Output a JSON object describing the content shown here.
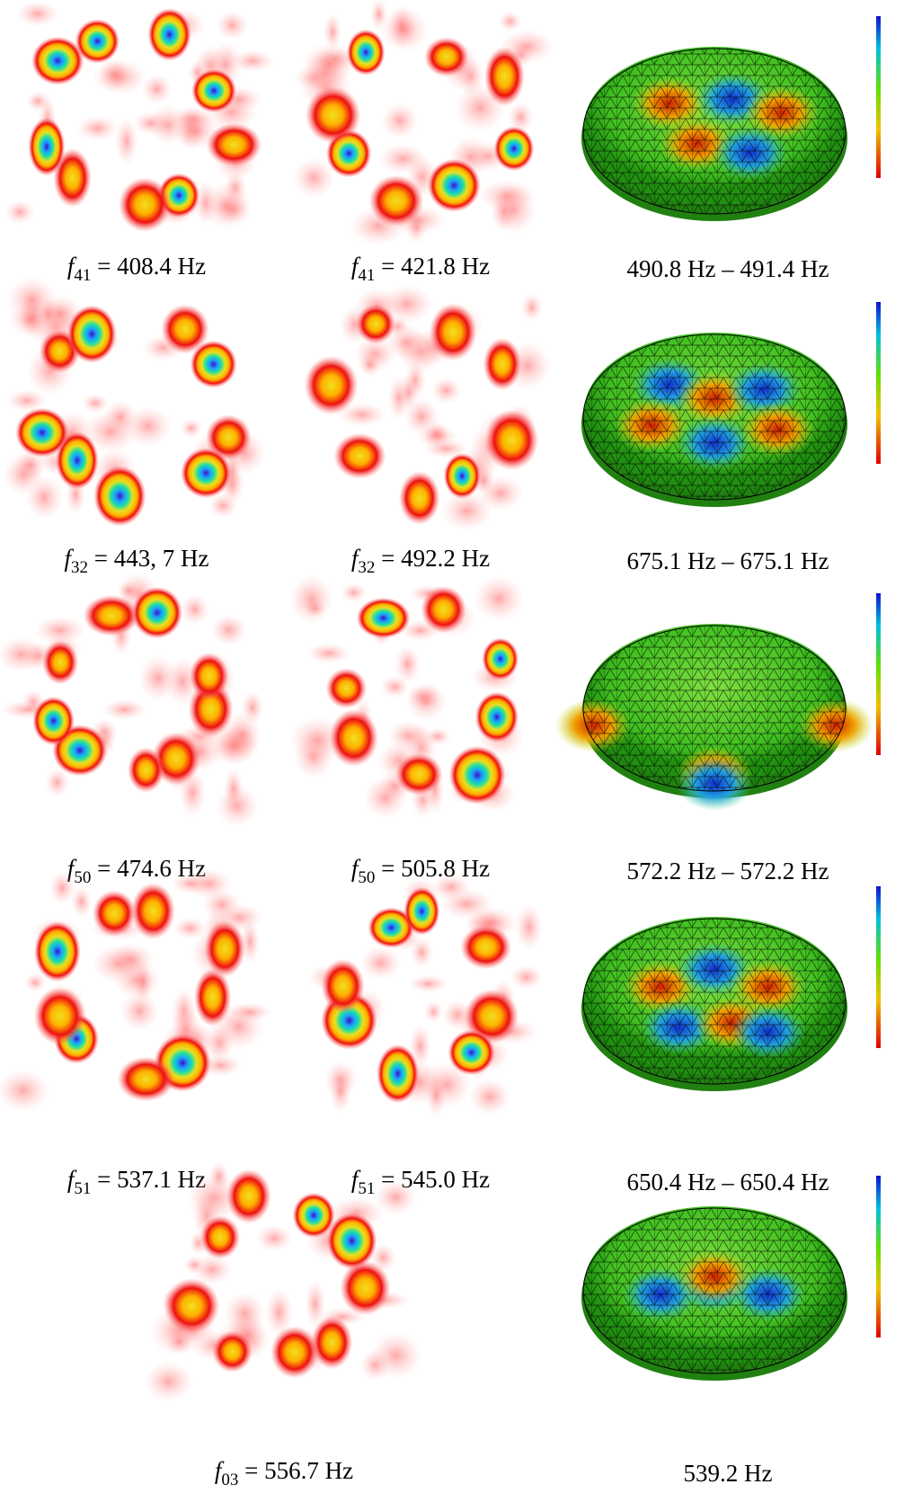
{
  "figure": {
    "rows": [
      {
        "left": {
          "symbol": "f",
          "index": "41",
          "rest": " = 408.4 Hz"
        },
        "middle": {
          "symbol": "f",
          "index": "41",
          "rest": " = 421.8 Hz"
        },
        "right": "490.8 Hz – 491.4 Hz"
      },
      {
        "left": {
          "symbol": "f",
          "index": "32",
          "rest": " = 443, 7 Hz"
        },
        "middle": {
          "symbol": "f",
          "index": "32",
          "rest": " = 492.2 Hz"
        },
        "right": "675.1 Hz – 675.1 Hz"
      },
      {
        "left": {
          "symbol": "f",
          "index": "50",
          "rest": " = 474.6 Hz"
        },
        "middle": {
          "symbol": "f",
          "index": "50",
          "rest": " = 505.8 Hz"
        },
        "right": "572.2 Hz – 572.2 Hz"
      },
      {
        "left": {
          "symbol": "f",
          "index": "51",
          "rest": " = 537.1 Hz"
        },
        "middle": {
          "symbol": "f",
          "index": "51",
          "rest": " = 545.0 Hz"
        },
        "right": "650.4 Hz – 650.4 Hz"
      },
      {
        "left": {
          "symbol": "f",
          "index": "03",
          "rest": " = 556.7 Hz"
        },
        "right": "539.2 Hz"
      }
    ]
  }
}
